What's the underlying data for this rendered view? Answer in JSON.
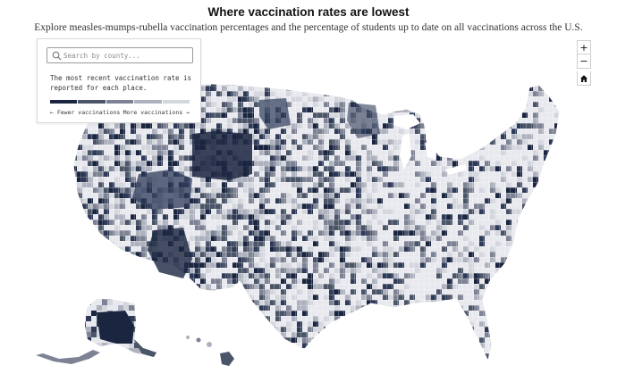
{
  "header": {
    "title": "Where vaccination rates are lowest",
    "subtitle": "Explore measles-mumps-rubella vaccination percentages and the percentage of students up to date on all vaccinations across the U.S."
  },
  "legend": {
    "search_placeholder": "Search by county...",
    "note": "The most recent vaccination rate is reported for each place.",
    "fewer_label": "← Fewer vaccinations",
    "more_label": "More vaccinations →",
    "scale_colors": [
      "#1a2540",
      "#4a5568",
      "#7d8394",
      "#aeb2be",
      "#d4d6de"
    ]
  },
  "controls": {
    "zoom_in": "+",
    "zoom_out": "−",
    "home_icon": "home-icon"
  },
  "map": {
    "region": "United States (counties)",
    "palette": [
      "#1a2540",
      "#2e3a58",
      "#4a5568",
      "#7d8394",
      "#aeb2be",
      "#d4d6de",
      "#e8e9ee"
    ]
  }
}
